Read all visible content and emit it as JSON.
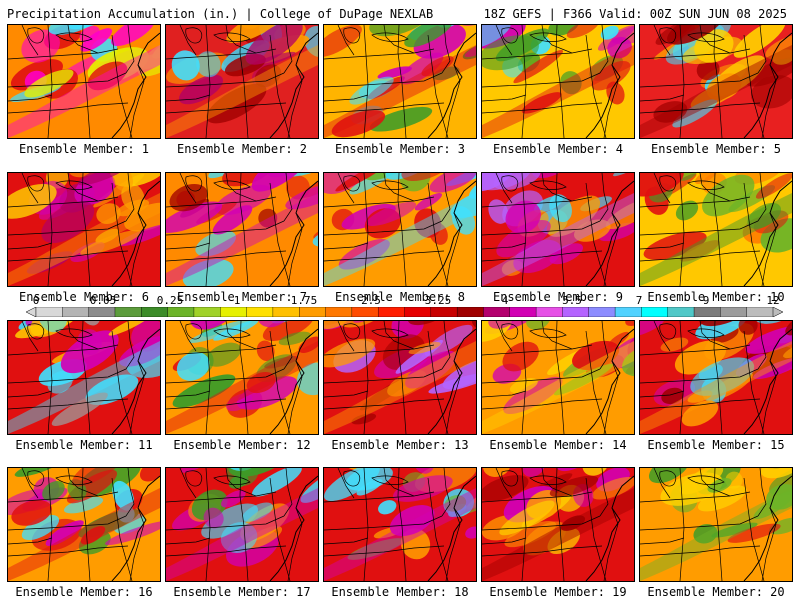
{
  "header": {
    "left": "Precipitation Accumulation (in.) | College of DuPage NEXLAB",
    "right": "18Z GEFS | F366 Valid: 00Z SUN JUN 08 2025"
  },
  "colorbar": {
    "labels": [
      "0",
      "0.05",
      "0.25",
      "1",
      "1.75",
      "2.5",
      "3.25",
      "4",
      "5.5",
      "7",
      "9",
      "12"
    ],
    "colors": [
      "#d8d8d8",
      "#b4b4b4",
      "#8c8c8c",
      "#5c9c3c",
      "#3c8c28",
      "#6cb428",
      "#a0d228",
      "#e6f000",
      "#ffe000",
      "#ffc000",
      "#ff9c00",
      "#ff7800",
      "#ff4c00",
      "#ff1e00",
      "#e60000",
      "#c80000",
      "#a00000",
      "#b4006e",
      "#d200b4",
      "#e650e6",
      "#b464ff",
      "#8c8cff",
      "#50d2ff",
      "#00ffff",
      "#50c8c8",
      "#7c7c7c",
      "#9c9c9c",
      "#bcbcbc"
    ]
  },
  "panels": [
    {
      "label": "Ensemble Member: 1",
      "base": "#ff8a00",
      "accents": [
        "#e01010",
        "#ff00c8",
        "#40e0ff",
        "#e6f000"
      ]
    },
    {
      "label": "Ensemble Member: 2",
      "base": "#e02020",
      "accents": [
        "#b40064",
        "#ff9c00",
        "#40e0ff",
        "#a00000"
      ]
    },
    {
      "label": "Ensemble Member: 3",
      "base": "#ffb400",
      "accents": [
        "#3c9c28",
        "#e01010",
        "#d200b4",
        "#40e0ff"
      ]
    },
    {
      "label": "Ensemble Member: 4",
      "base": "#ffc800",
      "accents": [
        "#3c9c28",
        "#e01010",
        "#d200b4",
        "#40e0ff"
      ]
    },
    {
      "label": "Ensemble Member: 5",
      "base": "#e82020",
      "accents": [
        "#ff9c00",
        "#a00000",
        "#40e0ff",
        "#ffd000"
      ]
    },
    {
      "label": "Ensemble Member: 6",
      "base": "#e01010",
      "accents": [
        "#d200b4",
        "#ff9c00",
        "#b40064",
        "#ffd000"
      ]
    },
    {
      "label": "Ensemble Member: 7",
      "base": "#ff8a00",
      "accents": [
        "#e01010",
        "#d200b4",
        "#40e0ff",
        "#a00000"
      ]
    },
    {
      "label": "Ensemble Member: 8",
      "base": "#ff9c00",
      "accents": [
        "#d200b4",
        "#40e0ff",
        "#e01010",
        "#6cb428"
      ]
    },
    {
      "label": "Ensemble Member: 9",
      "base": "#e01010",
      "accents": [
        "#d200b4",
        "#b464ff",
        "#40e0ff",
        "#ff9c00"
      ]
    },
    {
      "label": "Ensemble Member: 10",
      "base": "#ffc800",
      "accents": [
        "#6cb428",
        "#3c9c28",
        "#ff7800",
        "#e01010"
      ]
    },
    {
      "label": "Ensemble Member: 11",
      "base": "#e01010",
      "accents": [
        "#ffc800",
        "#40e0ff",
        "#9c9c9c",
        "#d200b4"
      ]
    },
    {
      "label": "Ensemble Member: 12",
      "base": "#ff9c00",
      "accents": [
        "#3c9c28",
        "#e01010",
        "#d200b4",
        "#40e0ff"
      ]
    },
    {
      "label": "Ensemble Member: 13",
      "base": "#e01010",
      "accents": [
        "#d200b4",
        "#ff9c00",
        "#b464ff",
        "#a00000"
      ]
    },
    {
      "label": "Ensemble Member: 14",
      "base": "#ff9c00",
      "accents": [
        "#e01010",
        "#ffd000",
        "#d200b4",
        "#6cb428"
      ]
    },
    {
      "label": "Ensemble Member: 15",
      "base": "#e01010",
      "accents": [
        "#a00000",
        "#ff9c00",
        "#40e0ff",
        "#d200b4"
      ]
    },
    {
      "label": "Ensemble Member: 16",
      "base": "#ff9c00",
      "accents": [
        "#3c9c28",
        "#e01010",
        "#40e0ff",
        "#d200b4"
      ]
    },
    {
      "label": "Ensemble Member: 17",
      "base": "#e01010",
      "accents": [
        "#3c9c28",
        "#d200b4",
        "#ff9c00",
        "#40e0ff"
      ]
    },
    {
      "label": "Ensemble Member: 18",
      "base": "#e01010",
      "accents": [
        "#ff9c00",
        "#d200b4",
        "#40e0ff",
        "#6cb428"
      ]
    },
    {
      "label": "Ensemble Member: 19",
      "base": "#e01010",
      "accents": [
        "#ff9c00",
        "#a00000",
        "#d200b4",
        "#ffd000"
      ]
    },
    {
      "label": "Ensemble Member: 20",
      "base": "#ff9c00",
      "accents": [
        "#3c9c28",
        "#6cb428",
        "#e01010",
        "#ffd000"
      ]
    }
  ]
}
